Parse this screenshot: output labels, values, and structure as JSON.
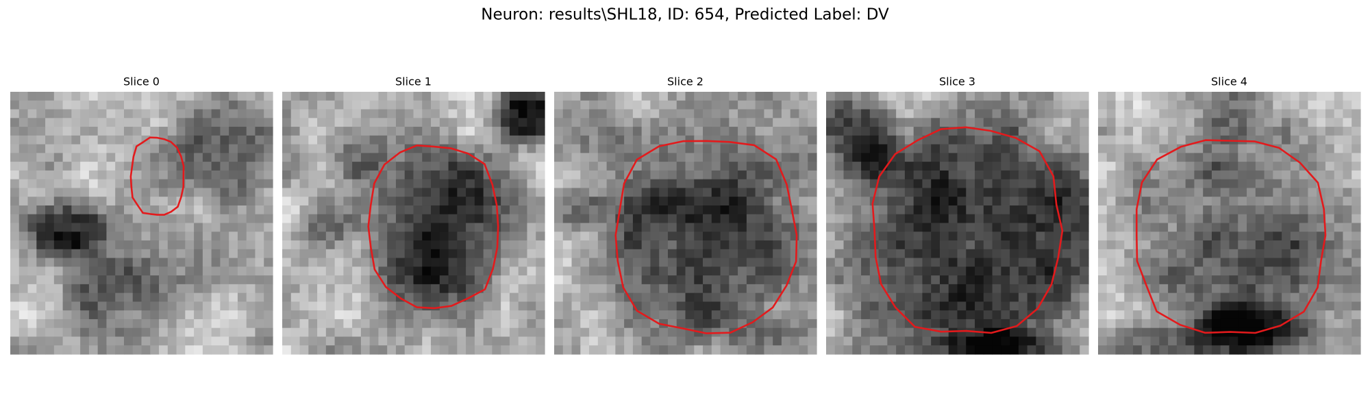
{
  "title": "Neuron: results\\SHL18, ID: 654, Predicted Label: DV",
  "panels": [
    {
      "title": "Slice 0"
    },
    {
      "title": "Slice 1"
    },
    {
      "title": "Slice 2"
    },
    {
      "title": "Slice 3"
    },
    {
      "title": "Slice 4"
    }
  ]
}
